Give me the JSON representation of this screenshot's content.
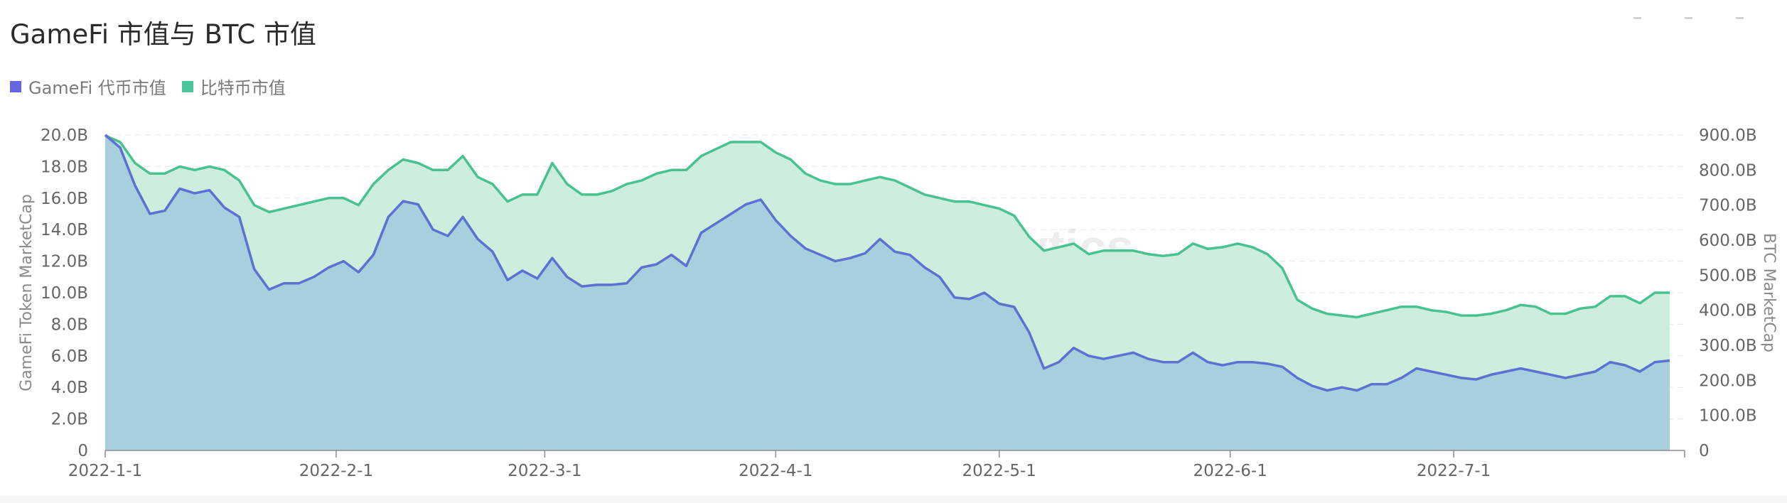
{
  "title": "GameFi 市值与 BTC 市值",
  "legend": [
    {
      "label": "GameFi 代币市值",
      "color": "#6366e0"
    },
    {
      "label": "比特币市值",
      "color": "#4cc49a"
    }
  ],
  "watermark": "Footprint Analytics",
  "chart_data": {
    "type": "area",
    "x_start": "2022-01-01",
    "x_end": "2022-08-01",
    "xticks": [
      "2022-1-1",
      "2022-2-1",
      "2022-3-1",
      "2022-4-1",
      "2022-5-1",
      "2022-6-1",
      "2022-7-1"
    ],
    "ylabel_left": "GameFi Token MarketCap",
    "ylabel_right": "BTC MarketCap",
    "ylim_left": [
      0,
      20
    ],
    "ylim_right": [
      0,
      900
    ],
    "yticks_left": [
      "0",
      "2.0B",
      "4.0B",
      "6.0B",
      "8.0B",
      "10.0B",
      "12.0B",
      "14.0B",
      "16.0B",
      "18.0B",
      "20.0B"
    ],
    "yticks_right": [
      "0",
      "100.0B",
      "200.0B",
      "300.0B",
      "400.0B",
      "500.0B",
      "600.0B",
      "700.0B",
      "800.0B",
      "900.0B"
    ],
    "grid": true,
    "series": [
      {
        "name": "GameFi 代币市值",
        "axis": "left",
        "unit": "B",
        "color": "#5b72d2",
        "fill": "#a8cfde",
        "points": [
          [
            "2022-01-01",
            20.0
          ],
          [
            "2022-01-03",
            19.2
          ],
          [
            "2022-01-05",
            16.8
          ],
          [
            "2022-01-07",
            15.0
          ],
          [
            "2022-01-09",
            15.2
          ],
          [
            "2022-01-11",
            16.6
          ],
          [
            "2022-01-13",
            16.3
          ],
          [
            "2022-01-15",
            16.5
          ],
          [
            "2022-01-17",
            15.4
          ],
          [
            "2022-01-19",
            14.8
          ],
          [
            "2022-01-21",
            11.5
          ],
          [
            "2022-01-23",
            10.2
          ],
          [
            "2022-01-25",
            10.6
          ],
          [
            "2022-01-27",
            10.6
          ],
          [
            "2022-01-29",
            11.0
          ],
          [
            "2022-01-31",
            11.6
          ],
          [
            "2022-02-02",
            12.0
          ],
          [
            "2022-02-04",
            11.3
          ],
          [
            "2022-02-06",
            12.4
          ],
          [
            "2022-02-08",
            14.8
          ],
          [
            "2022-02-10",
            15.8
          ],
          [
            "2022-02-12",
            15.6
          ],
          [
            "2022-02-14",
            14.0
          ],
          [
            "2022-02-16",
            13.6
          ],
          [
            "2022-02-18",
            14.8
          ],
          [
            "2022-02-20",
            13.4
          ],
          [
            "2022-02-22",
            12.6
          ],
          [
            "2022-02-24",
            10.8
          ],
          [
            "2022-02-26",
            11.4
          ],
          [
            "2022-02-28",
            10.9
          ],
          [
            "2022-03-02",
            12.2
          ],
          [
            "2022-03-04",
            11.0
          ],
          [
            "2022-03-06",
            10.4
          ],
          [
            "2022-03-08",
            10.5
          ],
          [
            "2022-03-10",
            10.5
          ],
          [
            "2022-03-12",
            10.6
          ],
          [
            "2022-03-14",
            11.6
          ],
          [
            "2022-03-16",
            11.8
          ],
          [
            "2022-03-18",
            12.4
          ],
          [
            "2022-03-20",
            11.7
          ],
          [
            "2022-03-22",
            13.8
          ],
          [
            "2022-03-24",
            14.4
          ],
          [
            "2022-03-26",
            15.0
          ],
          [
            "2022-03-28",
            15.6
          ],
          [
            "2022-03-30",
            15.9
          ],
          [
            "2022-04-01",
            14.6
          ],
          [
            "2022-04-03",
            13.6
          ],
          [
            "2022-04-05",
            12.8
          ],
          [
            "2022-04-07",
            12.4
          ],
          [
            "2022-04-09",
            12.0
          ],
          [
            "2022-04-11",
            12.2
          ],
          [
            "2022-04-13",
            12.5
          ],
          [
            "2022-04-15",
            13.4
          ],
          [
            "2022-04-17",
            12.6
          ],
          [
            "2022-04-19",
            12.4
          ],
          [
            "2022-04-21",
            11.6
          ],
          [
            "2022-04-23",
            11.0
          ],
          [
            "2022-04-25",
            9.7
          ],
          [
            "2022-04-27",
            9.6
          ],
          [
            "2022-04-29",
            10.0
          ],
          [
            "2022-05-01",
            9.3
          ],
          [
            "2022-05-03",
            9.1
          ],
          [
            "2022-05-05",
            7.5
          ],
          [
            "2022-05-07",
            5.2
          ],
          [
            "2022-05-09",
            5.6
          ],
          [
            "2022-05-11",
            6.5
          ],
          [
            "2022-05-13",
            6.0
          ],
          [
            "2022-05-15",
            5.8
          ],
          [
            "2022-05-17",
            6.0
          ],
          [
            "2022-05-19",
            6.2
          ],
          [
            "2022-05-21",
            5.8
          ],
          [
            "2022-05-23",
            5.6
          ],
          [
            "2022-05-25",
            5.6
          ],
          [
            "2022-05-27",
            6.2
          ],
          [
            "2022-05-29",
            5.6
          ],
          [
            "2022-05-31",
            5.4
          ],
          [
            "2022-06-02",
            5.6
          ],
          [
            "2022-06-04",
            5.6
          ],
          [
            "2022-06-06",
            5.5
          ],
          [
            "2022-06-08",
            5.3
          ],
          [
            "2022-06-10",
            4.6
          ],
          [
            "2022-06-12",
            4.1
          ],
          [
            "2022-06-14",
            3.8
          ],
          [
            "2022-06-16",
            4.0
          ],
          [
            "2022-06-18",
            3.8
          ],
          [
            "2022-06-20",
            4.2
          ],
          [
            "2022-06-22",
            4.2
          ],
          [
            "2022-06-24",
            4.6
          ],
          [
            "2022-06-26",
            5.2
          ],
          [
            "2022-06-28",
            5.0
          ],
          [
            "2022-06-30",
            4.8
          ],
          [
            "2022-07-02",
            4.6
          ],
          [
            "2022-07-04",
            4.5
          ],
          [
            "2022-07-06",
            4.8
          ],
          [
            "2022-07-08",
            5.0
          ],
          [
            "2022-07-10",
            5.2
          ],
          [
            "2022-07-12",
            5.0
          ],
          [
            "2022-07-14",
            4.8
          ],
          [
            "2022-07-16",
            4.6
          ],
          [
            "2022-07-18",
            4.8
          ],
          [
            "2022-07-20",
            5.0
          ],
          [
            "2022-07-22",
            5.6
          ],
          [
            "2022-07-24",
            5.4
          ],
          [
            "2022-07-26",
            5.0
          ],
          [
            "2022-07-28",
            5.6
          ],
          [
            "2022-07-30",
            5.7
          ]
        ]
      },
      {
        "name": "比特币市值",
        "axis": "right",
        "unit": "B",
        "color": "#48c28f",
        "fill": "#cdeedd",
        "points": [
          [
            "2022-01-01",
            898
          ],
          [
            "2022-01-03",
            880
          ],
          [
            "2022-01-05",
            820
          ],
          [
            "2022-01-07",
            790
          ],
          [
            "2022-01-09",
            790
          ],
          [
            "2022-01-11",
            810
          ],
          [
            "2022-01-13",
            800
          ],
          [
            "2022-01-15",
            810
          ],
          [
            "2022-01-17",
            800
          ],
          [
            "2022-01-19",
            770
          ],
          [
            "2022-01-21",
            700
          ],
          [
            "2022-01-23",
            680
          ],
          [
            "2022-01-25",
            690
          ],
          [
            "2022-01-27",
            700
          ],
          [
            "2022-01-29",
            710
          ],
          [
            "2022-01-31",
            720
          ],
          [
            "2022-02-02",
            720
          ],
          [
            "2022-02-04",
            700
          ],
          [
            "2022-02-06",
            760
          ],
          [
            "2022-02-08",
            800
          ],
          [
            "2022-02-10",
            830
          ],
          [
            "2022-02-12",
            820
          ],
          [
            "2022-02-14",
            800
          ],
          [
            "2022-02-16",
            800
          ],
          [
            "2022-02-18",
            840
          ],
          [
            "2022-02-20",
            780
          ],
          [
            "2022-02-22",
            760
          ],
          [
            "2022-02-24",
            710
          ],
          [
            "2022-02-26",
            730
          ],
          [
            "2022-02-28",
            730
          ],
          [
            "2022-03-02",
            820
          ],
          [
            "2022-03-04",
            760
          ],
          [
            "2022-03-06",
            730
          ],
          [
            "2022-03-08",
            730
          ],
          [
            "2022-03-10",
            740
          ],
          [
            "2022-03-12",
            760
          ],
          [
            "2022-03-14",
            770
          ],
          [
            "2022-03-16",
            790
          ],
          [
            "2022-03-18",
            800
          ],
          [
            "2022-03-20",
            800
          ],
          [
            "2022-03-22",
            840
          ],
          [
            "2022-03-24",
            860
          ],
          [
            "2022-03-26",
            880
          ],
          [
            "2022-03-28",
            880
          ],
          [
            "2022-03-30",
            880
          ],
          [
            "2022-04-01",
            850
          ],
          [
            "2022-04-03",
            830
          ],
          [
            "2022-04-05",
            790
          ],
          [
            "2022-04-07",
            770
          ],
          [
            "2022-04-09",
            760
          ],
          [
            "2022-04-11",
            760
          ],
          [
            "2022-04-13",
            770
          ],
          [
            "2022-04-15",
            780
          ],
          [
            "2022-04-17",
            770
          ],
          [
            "2022-04-19",
            750
          ],
          [
            "2022-04-21",
            730
          ],
          [
            "2022-04-23",
            720
          ],
          [
            "2022-04-25",
            710
          ],
          [
            "2022-04-27",
            710
          ],
          [
            "2022-04-29",
            700
          ],
          [
            "2022-05-01",
            690
          ],
          [
            "2022-05-03",
            670
          ],
          [
            "2022-05-05",
            610
          ],
          [
            "2022-05-07",
            570
          ],
          [
            "2022-05-09",
            580
          ],
          [
            "2022-05-11",
            590
          ],
          [
            "2022-05-13",
            560
          ],
          [
            "2022-05-15",
            570
          ],
          [
            "2022-05-17",
            570
          ],
          [
            "2022-05-19",
            570
          ],
          [
            "2022-05-21",
            560
          ],
          [
            "2022-05-23",
            555
          ],
          [
            "2022-05-25",
            560
          ],
          [
            "2022-05-27",
            590
          ],
          [
            "2022-05-29",
            575
          ],
          [
            "2022-05-31",
            580
          ],
          [
            "2022-06-02",
            590
          ],
          [
            "2022-06-04",
            580
          ],
          [
            "2022-06-06",
            560
          ],
          [
            "2022-06-08",
            520
          ],
          [
            "2022-06-10",
            430
          ],
          [
            "2022-06-12",
            405
          ],
          [
            "2022-06-14",
            390
          ],
          [
            "2022-06-16",
            385
          ],
          [
            "2022-06-18",
            380
          ],
          [
            "2022-06-20",
            390
          ],
          [
            "2022-06-22",
            400
          ],
          [
            "2022-06-24",
            410
          ],
          [
            "2022-06-26",
            410
          ],
          [
            "2022-06-28",
            400
          ],
          [
            "2022-06-30",
            395
          ],
          [
            "2022-07-02",
            385
          ],
          [
            "2022-07-04",
            385
          ],
          [
            "2022-07-06",
            390
          ],
          [
            "2022-07-08",
            400
          ],
          [
            "2022-07-10",
            415
          ],
          [
            "2022-07-12",
            410
          ],
          [
            "2022-07-14",
            390
          ],
          [
            "2022-07-16",
            390
          ],
          [
            "2022-07-18",
            405
          ],
          [
            "2022-07-20",
            410
          ],
          [
            "2022-07-22",
            440
          ],
          [
            "2022-07-24",
            440
          ],
          [
            "2022-07-26",
            420
          ],
          [
            "2022-07-28",
            450
          ],
          [
            "2022-07-30",
            450
          ]
        ]
      }
    ]
  }
}
